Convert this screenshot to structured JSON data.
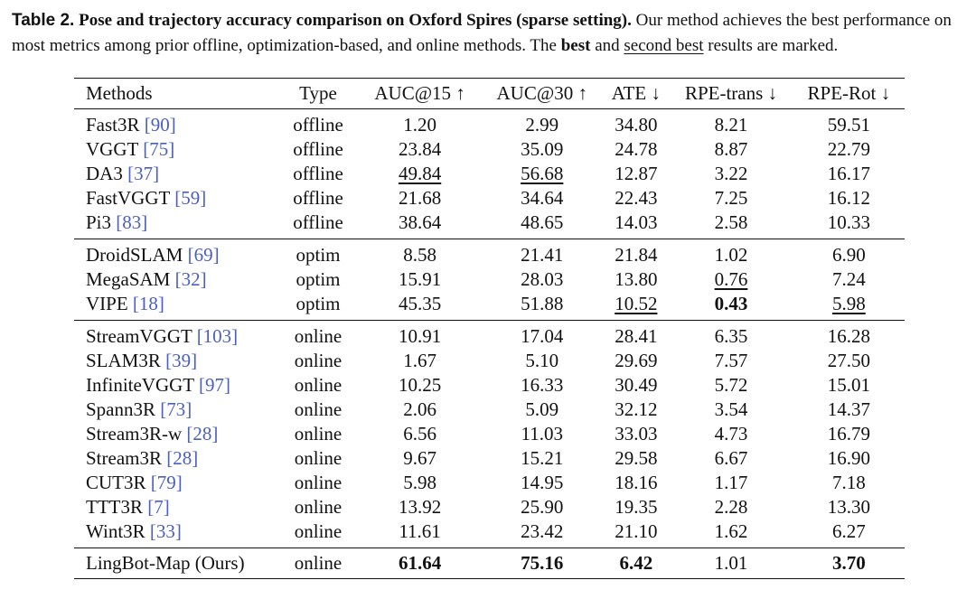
{
  "caption": {
    "label": "Table 2.",
    "title": "Pose and trajectory accuracy comparison on Oxford Spires (sparse setting).",
    "text_before_best": "Our method achieves the best performance on most metrics among prior offline, optimization-based, and online methods. The",
    "best_word": "best",
    "text_and": "and",
    "second_best_phrase": "second best",
    "text_end": "results are marked."
  },
  "table": {
    "headers": [
      "Methods",
      "Type",
      "AUC@15 ↑",
      "AUC@30 ↑",
      "ATE ↓",
      "RPE-trans ↓",
      "RPE-Rot ↓"
    ],
    "groups": [
      [
        {
          "method": "Fast3R",
          "ref": "[90]",
          "type": "offline",
          "values": [
            "1.20",
            "2.99",
            "34.80",
            "8.21",
            "59.51"
          ],
          "marks": [
            "",
            "",
            "",
            "",
            ""
          ]
        },
        {
          "method": "VGGT",
          "ref": "[75]",
          "type": "offline",
          "values": [
            "23.84",
            "35.09",
            "24.78",
            "8.87",
            "22.79"
          ],
          "marks": [
            "",
            "",
            "",
            "",
            ""
          ]
        },
        {
          "method": "DA3",
          "ref": "[37]",
          "type": "offline",
          "values": [
            "49.84",
            "56.68",
            "12.87",
            "3.22",
            "16.17"
          ],
          "marks": [
            "second",
            "second",
            "",
            "",
            ""
          ]
        },
        {
          "method": "FastVGGT",
          "ref": "[59]",
          "type": "offline",
          "values": [
            "21.68",
            "34.64",
            "22.43",
            "7.25",
            "16.12"
          ],
          "marks": [
            "",
            "",
            "",
            "",
            ""
          ]
        },
        {
          "method": "Pi3",
          "ref": "[83]",
          "type": "offline",
          "values": [
            "38.64",
            "48.65",
            "14.03",
            "2.58",
            "10.33"
          ],
          "marks": [
            "",
            "",
            "",
            "",
            ""
          ]
        }
      ],
      [
        {
          "method": "DroidSLAM",
          "ref": "[69]",
          "type": "optim",
          "values": [
            "8.58",
            "21.41",
            "21.84",
            "1.02",
            "6.90"
          ],
          "marks": [
            "",
            "",
            "",
            "",
            ""
          ]
        },
        {
          "method": "MegaSAM",
          "ref": "[32]",
          "type": "optim",
          "values": [
            "15.91",
            "28.03",
            "13.80",
            "0.76",
            "7.24"
          ],
          "marks": [
            "",
            "",
            "",
            "second",
            ""
          ]
        },
        {
          "method": "VIPE",
          "ref": "[18]",
          "type": "optim",
          "values": [
            "45.35",
            "51.88",
            "10.52",
            "0.43",
            "5.98"
          ],
          "marks": [
            "",
            "",
            "second",
            "best",
            "second"
          ]
        }
      ],
      [
        {
          "method": "StreamVGGT",
          "ref": "[103]",
          "type": "online",
          "values": [
            "10.91",
            "17.04",
            "28.41",
            "6.35",
            "16.28"
          ],
          "marks": [
            "",
            "",
            "",
            "",
            ""
          ]
        },
        {
          "method": "SLAM3R",
          "ref": "[39]",
          "type": "online",
          "values": [
            "1.67",
            "5.10",
            "29.69",
            "7.57",
            "27.50"
          ],
          "marks": [
            "",
            "",
            "",
            "",
            ""
          ]
        },
        {
          "method": "InfiniteVGGT",
          "ref": "[97]",
          "type": "online",
          "values": [
            "10.25",
            "16.33",
            "30.49",
            "5.72",
            "15.01"
          ],
          "marks": [
            "",
            "",
            "",
            "",
            ""
          ]
        },
        {
          "method": "Spann3R",
          "ref": "[73]",
          "type": "online",
          "values": [
            "2.06",
            "5.09",
            "32.12",
            "3.54",
            "14.37"
          ],
          "marks": [
            "",
            "",
            "",
            "",
            ""
          ]
        },
        {
          "method": "Stream3R-w",
          "ref": "[28]",
          "type": "online",
          "values": [
            "6.56",
            "11.03",
            "33.03",
            "4.73",
            "16.79"
          ],
          "marks": [
            "",
            "",
            "",
            "",
            ""
          ]
        },
        {
          "method": "Stream3R",
          "ref": "[28]",
          "type": "online",
          "values": [
            "9.67",
            "15.21",
            "29.58",
            "6.67",
            "16.90"
          ],
          "marks": [
            "",
            "",
            "",
            "",
            ""
          ]
        },
        {
          "method": "CUT3R",
          "ref": "[79]",
          "type": "online",
          "values": [
            "5.98",
            "14.95",
            "18.16",
            "1.17",
            "7.18"
          ],
          "marks": [
            "",
            "",
            "",
            "",
            ""
          ]
        },
        {
          "method": "TTT3R",
          "ref": "[7]",
          "type": "online",
          "values": [
            "13.92",
            "25.90",
            "19.35",
            "2.28",
            "13.30"
          ],
          "marks": [
            "",
            "",
            "",
            "",
            ""
          ]
        },
        {
          "method": "Wint3R",
          "ref": "[33]",
          "type": "online",
          "values": [
            "11.61",
            "23.42",
            "21.10",
            "1.62",
            "6.27"
          ],
          "marks": [
            "",
            "",
            "",
            "",
            ""
          ]
        }
      ],
      [
        {
          "method": "LingBot-Map (Ours)",
          "ref": "",
          "type": "online",
          "values": [
            "61.64",
            "75.16",
            "6.42",
            "1.01",
            "3.70"
          ],
          "marks": [
            "best",
            "best",
            "best",
            "",
            "best"
          ]
        }
      ]
    ]
  }
}
